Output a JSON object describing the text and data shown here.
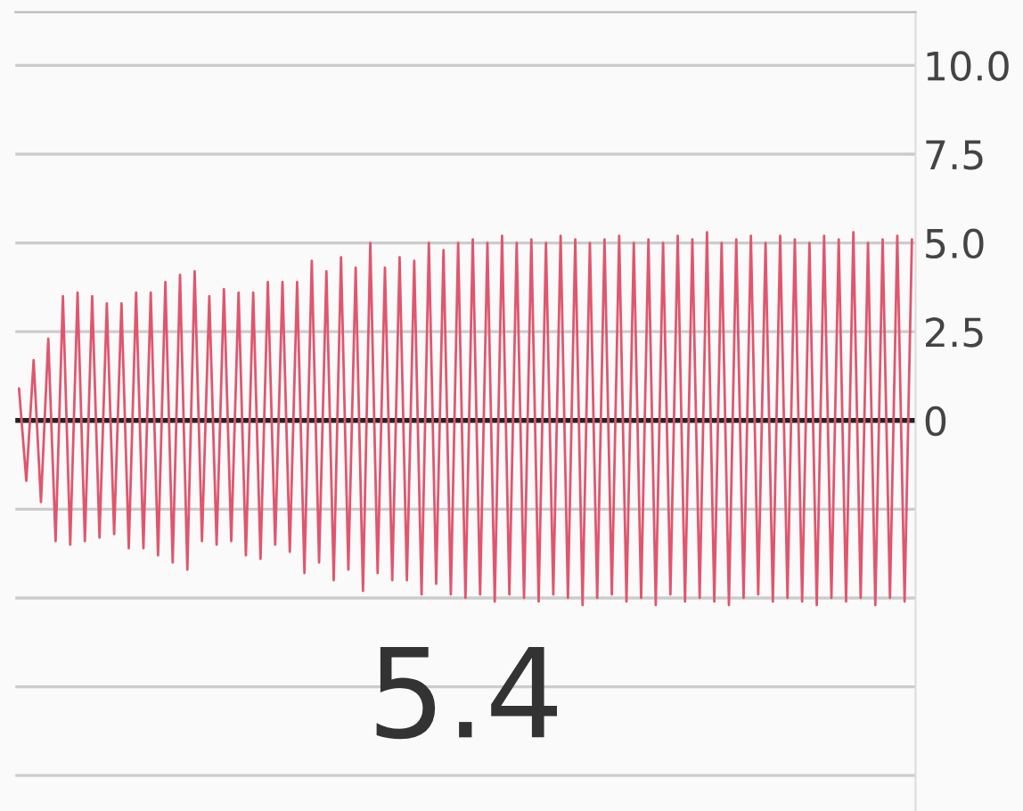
{
  "chart_data": {
    "type": "line",
    "categories": [
      null,
      null,
      null,
      null,
      null,
      null,
      null,
      null,
      null,
      null,
      null,
      null,
      null,
      null,
      null,
      null,
      null,
      null,
      null,
      null,
      null,
      null,
      null,
      null,
      null,
      null,
      null,
      null,
      null,
      null,
      null,
      null,
      null,
      null,
      null,
      null,
      null,
      null,
      null,
      null,
      null,
      null,
      null,
      null,
      null,
      null,
      null,
      null,
      null,
      null,
      null,
      null,
      null,
      null,
      null,
      null,
      null,
      null,
      null,
      null,
      null,
      null,
      null,
      null,
      null,
      null,
      null,
      null,
      null,
      null,
      null,
      null,
      null,
      null,
      null,
      null,
      null,
      null,
      null,
      null,
      null,
      null,
      null,
      null,
      null,
      null,
      null,
      null,
      null,
      null,
      null,
      null,
      null,
      null,
      null,
      null,
      null,
      null,
      null,
      null,
      null,
      null,
      null,
      null,
      null,
      null,
      null,
      null,
      null,
      null,
      null,
      null,
      null,
      null,
      null,
      null,
      null,
      null,
      null,
      null,
      null,
      null,
      null
    ],
    "series": [
      {
        "color": "#e0566e",
        "values": [
          0.9,
          -1.7,
          1.7,
          -2.3,
          2.3,
          -3.4,
          3.5,
          -3.5,
          3.6,
          -3.4,
          3.5,
          -3.3,
          3.3,
          -3.2,
          3.3,
          -3.6,
          3.6,
          -3.6,
          3.6,
          -3.8,
          3.9,
          -4.0,
          4.1,
          -4.2,
          4.2,
          -3.4,
          3.5,
          -3.5,
          3.7,
          -3.4,
          3.6,
          -3.8,
          3.6,
          -3.9,
          3.9,
          -3.5,
          3.9,
          -3.7,
          3.9,
          -4.3,
          4.5,
          -4.0,
          4.2,
          -4.5,
          4.6,
          -4.2,
          4.3,
          -4.8,
          5.0,
          -4.3,
          4.3,
          -4.5,
          4.6,
          -4.5,
          4.5,
          -4.9,
          5.0,
          -4.6,
          4.8,
          -4.9,
          5.0,
          -5.0,
          5.1,
          -4.9,
          5.0,
          -5.1,
          5.2,
          -4.9,
          5.0,
          -5.0,
          5.1,
          -5.1,
          5.0,
          -4.9,
          5.2,
          -5.0,
          5.1,
          -5.2,
          5.0,
          -5.0,
          5.1,
          -4.9,
          5.2,
          -5.1,
          5.0,
          -5.0,
          5.1,
          -5.2,
          5.0,
          -4.9,
          5.2,
          -5.1,
          5.1,
          -5.0,
          5.3,
          -5.1,
          5.0,
          -5.2,
          5.1,
          -5.0,
          5.2,
          -4.9,
          5.0,
          -5.1,
          5.2,
          -5.0,
          5.1,
          -5.1,
          5.0,
          -5.2,
          5.2,
          -5.0,
          5.1,
          -5.1,
          5.3,
          -5.0,
          5.0,
          -5.2,
          5.1,
          -5.0,
          5.2,
          -5.1,
          5.1
        ]
      }
    ],
    "ylim": [
      -11,
      11.5
    ],
    "yticks": [
      {
        "value": -10,
        "label": null
      },
      {
        "value": -7.5,
        "label": null
      },
      {
        "value": -5,
        "label": null
      },
      {
        "value": -2.5,
        "label": null
      },
      {
        "value": 0,
        "label": "0"
      },
      {
        "value": 2.5,
        "label": "2.5"
      },
      {
        "value": 5,
        "label": "5.0"
      },
      {
        "value": 7.5,
        "label": "7.5"
      },
      {
        "value": 10,
        "label": "10.0"
      }
    ],
    "grid": "y",
    "tick_labels": "y",
    "line_style": "solid",
    "ref_lines": [
      {
        "axis": "y",
        "value": 0,
        "color": "#222222",
        "line_style": "solid"
      }
    ],
    "annotations": [
      "5.4"
    ]
  }
}
